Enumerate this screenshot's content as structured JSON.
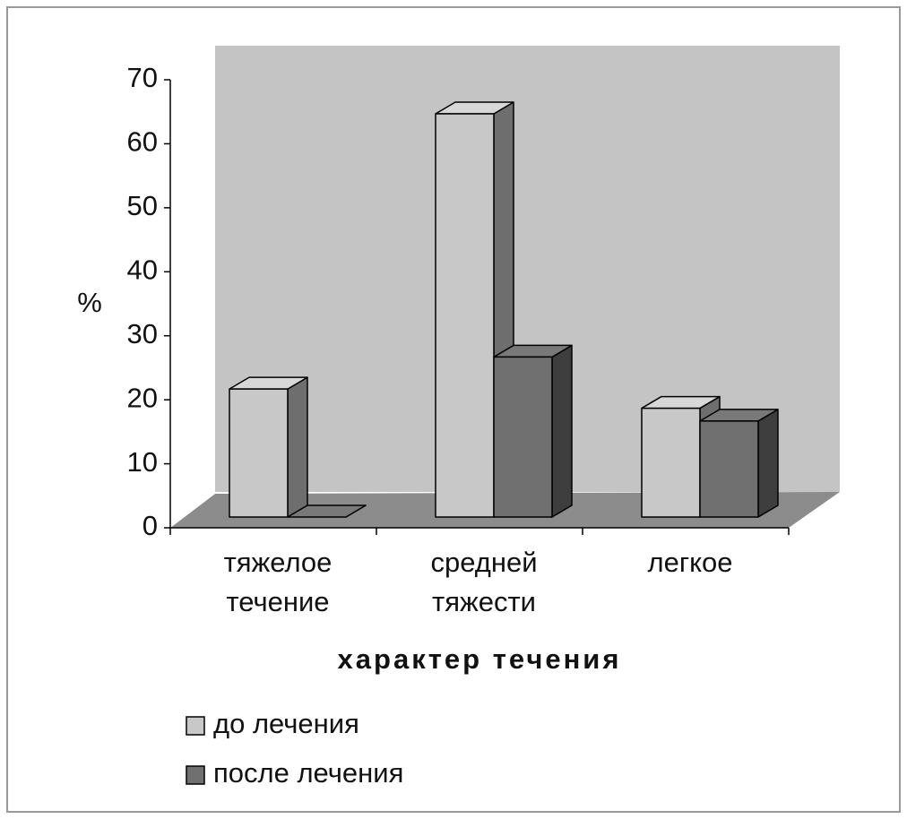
{
  "chart_data": {
    "type": "bar3d",
    "y_label": "%",
    "x_label": "характер течения",
    "categories": [
      "тяжелое течение",
      "средней тяжести",
      "легкое"
    ],
    "series": [
      {
        "name": "до лечения",
        "color": "#c8c8c8",
        "values": [
          20,
          63,
          17
        ]
      },
      {
        "name": "после лечения",
        "color": "#707070",
        "values": [
          0,
          25,
          15
        ]
      }
    ],
    "ylim": [
      0,
      70
    ],
    "yticks": [
      0,
      10,
      20,
      30,
      40,
      50,
      60,
      70
    ],
    "grid": false
  }
}
